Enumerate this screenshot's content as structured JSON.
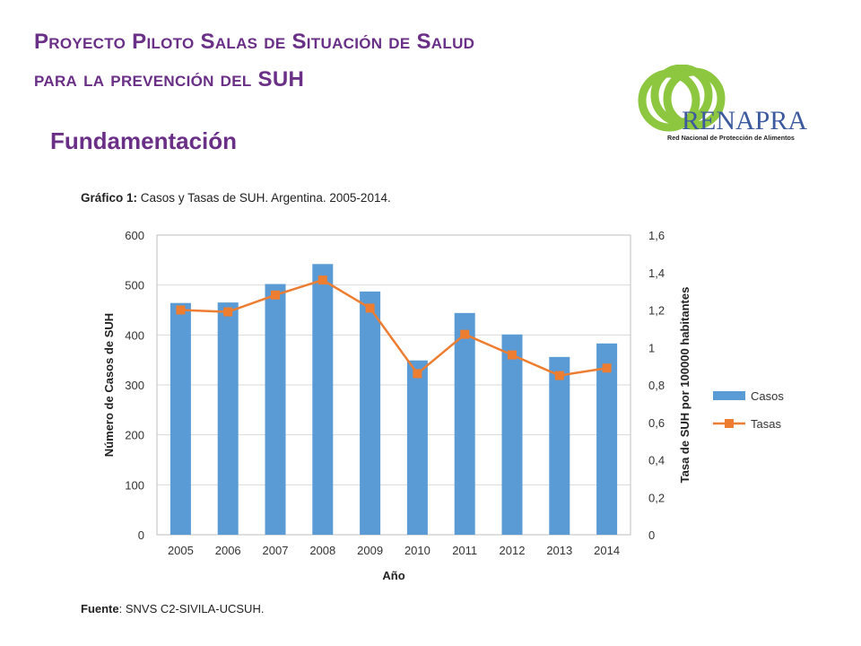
{
  "slide": {
    "title_line1": "Proyecto Piloto Salas de Situación de Salud",
    "title_line2": "para la prevención del SUH",
    "section": "Fundamentación"
  },
  "logo": {
    "name": "RENAPRA",
    "subtitle": "Red Nacional de Protección de Alimentos",
    "ring_color": "#8dc63f",
    "text_color": "#3d5a9e"
  },
  "figure": {
    "caption_label": "Gráfico 1:",
    "caption_text": "Casos y Tasas de SUH. Argentina. 2005-2014.",
    "source_label": "Fuente",
    "source_text": ": SNVS C2-SIVILA-UCSUH."
  },
  "chart_data": {
    "type": "bar",
    "categories": [
      "2005",
      "2006",
      "2007",
      "2008",
      "2009",
      "2010",
      "2011",
      "2012",
      "2013",
      "2014"
    ],
    "series": [
      {
        "name": "Casos",
        "type": "bar",
        "axis": "left",
        "color": "#5b9bd5",
        "values": [
          464,
          465,
          502,
          542,
          487,
          349,
          444,
          401,
          356,
          383
        ]
      },
      {
        "name": "Tasas",
        "type": "line",
        "axis": "right",
        "color": "#ed7d31",
        "values": [
          1.2,
          1.19,
          1.28,
          1.36,
          1.21,
          0.86,
          1.07,
          0.96,
          0.85,
          0.89
        ]
      }
    ],
    "xlabel": "Año",
    "ylabel": "Número de Casos de SUH",
    "y2label": "Tasa de SUH por 100000 habitantes",
    "ylim": [
      0,
      600
    ],
    "y2lim": [
      0,
      1.6
    ],
    "yticks": [
      "0",
      "100",
      "200",
      "300",
      "400",
      "500",
      "600"
    ],
    "y2ticks": [
      "0",
      "0,2",
      "0,4",
      "0,6",
      "0,8",
      "1",
      "1,2",
      "1,4",
      "1,6"
    ],
    "grid": true,
    "legend_position": "right"
  }
}
